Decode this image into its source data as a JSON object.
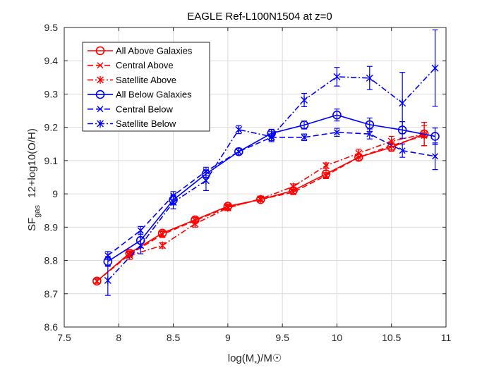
{
  "chart_data": {
    "type": "line",
    "title": "EAGLE Ref-L100N1504 at z=0",
    "xlabel": "log(M_*)/M☉",
    "ylabel": "SF_gas 12+log10(O/H)",
    "xlim": [
      7.5,
      11
    ],
    "ylim": [
      8.6,
      9.5
    ],
    "xticks": [
      "7.5",
      "8",
      "8.5",
      "9",
      "9.5",
      "10",
      "10.5",
      "11"
    ],
    "yticks": [
      "8.6",
      "8.7",
      "8.8",
      "8.9",
      "9",
      "9.1",
      "9.2",
      "9.3",
      "9.4",
      "9.5"
    ],
    "grid": true,
    "legend_position": "top-left",
    "series": [
      {
        "name": "All Above Galaxies",
        "color": "#ff0000",
        "line": "solid",
        "marker": "circle",
        "x": [
          7.8,
          8.1,
          8.4,
          8.7,
          9.0,
          9.3,
          9.6,
          9.9,
          10.2,
          10.5,
          10.8
        ],
        "y": [
          8.738,
          8.822,
          8.882,
          8.922,
          8.963,
          8.983,
          9.01,
          9.06,
          9.11,
          9.14,
          9.18
        ],
        "err": [
          0.007,
          0.007,
          0.008,
          0.008,
          0.007,
          0.006,
          0.008,
          0.01,
          0.01,
          0.012,
          0.035
        ]
      },
      {
        "name": "Central Above",
        "color": "#ff0000",
        "line": "dashed",
        "marker": "x",
        "x": [
          7.8,
          8.1,
          8.4,
          8.7,
          9.0,
          9.3,
          9.6,
          9.9,
          10.2,
          10.5,
          10.8
        ],
        "y": [
          8.738,
          8.818,
          8.878,
          8.92,
          8.96,
          8.983,
          9.005,
          9.055,
          9.11,
          9.145,
          9.175
        ],
        "err": [
          0.006,
          0.008,
          0.009,
          0.008,
          0.008,
          0.006,
          0.007,
          0.009,
          0.01,
          0.012,
          0.03
        ]
      },
      {
        "name": "Satellite Above",
        "color": "#ff0000",
        "line": "dashdot",
        "marker": "star",
        "x": [
          8.1,
          8.4,
          8.7,
          9.0,
          9.3,
          9.6,
          9.9,
          10.2,
          10.5,
          10.8
        ],
        "y": [
          8.815,
          8.845,
          8.91,
          8.958,
          8.985,
          9.022,
          9.085,
          9.122,
          9.158,
          9.18
        ],
        "err": [
          0.012,
          0.008,
          0.01,
          0.008,
          0.007,
          0.008,
          0.008,
          0.012,
          0.015,
          0.035
        ]
      },
      {
        "name": "All Below Galaxies",
        "color": "#0000ff",
        "line": "solid",
        "marker": "circle",
        "x": [
          7.9,
          8.2,
          8.5,
          8.8,
          9.1,
          9.4,
          9.7,
          10.0,
          10.3,
          10.6,
          10.9
        ],
        "y": [
          8.797,
          8.86,
          8.982,
          9.06,
          9.127,
          9.182,
          9.207,
          9.237,
          9.208,
          9.192,
          9.173
        ],
        "err": [
          0.015,
          0.022,
          0.015,
          0.012,
          0.01,
          0.012,
          0.012,
          0.018,
          0.02,
          0.025,
          0.025
        ]
      },
      {
        "name": "Central Below",
        "color": "#0000ff",
        "line": "dashed",
        "marker": "x",
        "x": [
          7.9,
          8.2,
          8.5,
          8.8,
          9.1,
          9.4,
          9.7,
          10.0,
          10.3,
          10.6,
          10.9
        ],
        "y": [
          8.815,
          8.89,
          8.995,
          9.068,
          9.127,
          9.17,
          9.17,
          9.185,
          9.18,
          9.13,
          9.113
        ],
        "err": [
          0.012,
          0.012,
          0.012,
          0.012,
          0.01,
          0.01,
          0.01,
          0.012,
          0.015,
          0.02,
          0.04
        ]
      },
      {
        "name": "Satellite Below",
        "color": "#0000ff",
        "line": "dashdot",
        "marker": "star",
        "x": [
          7.9,
          8.2,
          8.5,
          8.8,
          9.1,
          9.4,
          9.7,
          10.0,
          10.3,
          10.6,
          10.9
        ],
        "y": [
          8.74,
          8.845,
          8.975,
          9.04,
          9.193,
          9.172,
          9.282,
          9.352,
          9.348,
          9.273,
          9.378
        ],
        "err": [
          0.045,
          0.025,
          0.02,
          0.03,
          0.012,
          0.015,
          0.02,
          0.028,
          0.035,
          0.092,
          0.115
        ]
      }
    ]
  }
}
